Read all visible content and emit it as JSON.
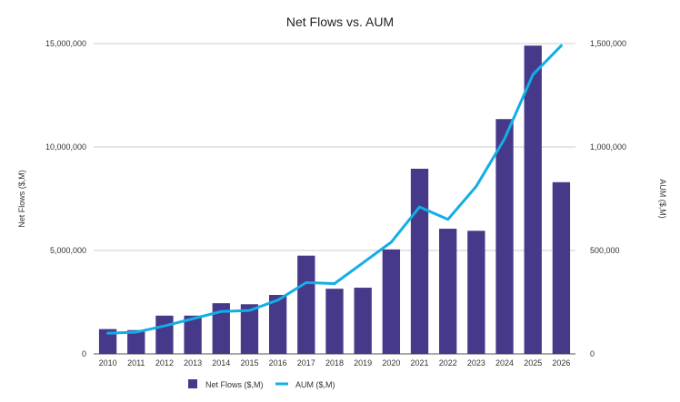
{
  "chart_data": {
    "type": "bar",
    "title": "Net Flows vs. AUM",
    "xlabel": "",
    "ylabel": "Net Flows ($,M)",
    "y2label": "AUM ($,M)",
    "ylim": [
      0,
      15000000
    ],
    "y2lim": [
      0,
      1500000
    ],
    "yticks": [
      "0",
      "5,000,000",
      "10,000,000",
      "15,000,000"
    ],
    "yticks_values": [
      0,
      5000000,
      10000000,
      15000000
    ],
    "y2ticks": [
      "0",
      "500,000",
      "1,000,000",
      "1,500,000"
    ],
    "y2ticks_values": [
      0,
      500000,
      1000000,
      1500000
    ],
    "categories": [
      "2010",
      "2011",
      "2012",
      "2013",
      "2014",
      "2015",
      "2016",
      "2017",
      "2018",
      "2019",
      "2020",
      "2021",
      "2022",
      "2023",
      "2024",
      "2025",
      "2026"
    ],
    "series": [
      {
        "name": "Net Flows ($,M)",
        "type": "bar",
        "axis": "left",
        "color": "#46398a",
        "values": [
          1200000,
          1150000,
          1850000,
          1850000,
          2450000,
          2400000,
          2850000,
          4750000,
          3150000,
          3200000,
          5050000,
          8950000,
          6050000,
          5950000,
          11350000,
          14900000,
          8300000
        ]
      },
      {
        "name": "AUM ($,M)",
        "type": "line",
        "axis": "right",
        "color": "#12aee6",
        "values": [
          100000,
          105000,
          135000,
          170000,
          205000,
          210000,
          260000,
          345000,
          340000,
          440000,
          540000,
          710000,
          650000,
          810000,
          1040000,
          1350000,
          1490000
        ]
      }
    ],
    "grid": true,
    "legend": "bottom"
  }
}
